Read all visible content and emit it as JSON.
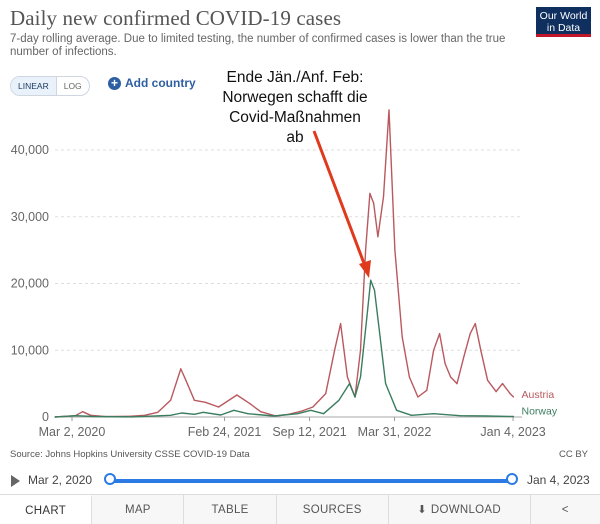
{
  "header": {
    "title": "Daily new confirmed COVID-19 cases",
    "subtitle": "7-day rolling average. Due to limited testing, the number of confirmed cases is lower than the true number of infections.",
    "logo_line1": "Our World",
    "logo_line2": "in Data"
  },
  "controls": {
    "scale_linear": "LINEAR",
    "scale_log": "LOG",
    "add_country": "Add country"
  },
  "annotation": {
    "line1": "Ende Jän./Anf. Feb:",
    "line2": "Norwegen schafft die",
    "line3": "Covid-Maßnahmen ab",
    "arrow_color": "#e03a1e"
  },
  "chart_data": {
    "type": "line",
    "title": "Daily new confirmed COVID-19 cases",
    "ylim": [
      0,
      46000
    ],
    "yticks": [
      0,
      10000,
      20000,
      30000,
      40000
    ],
    "ytick_labels": [
      "0",
      "10,000",
      "20,000",
      "30,000",
      "40,000"
    ],
    "xlim": [
      "2020-01-22",
      "2023-01-25"
    ],
    "xticks": [
      "2020-03-02",
      "2021-02-24",
      "2021-09-12",
      "2022-03-31",
      "2023-01-04"
    ],
    "xtick_labels": [
      "Mar 2, 2020",
      "Feb 24, 2021",
      "Sep 12, 2021",
      "Mar 31, 2022",
      "Jan 4, 2023"
    ],
    "grid": "horizontal dashed",
    "series": [
      {
        "name": "Austria",
        "color": "#b9595f",
        "points": [
          [
            "2020-01-22",
            0
          ],
          [
            "2020-03-10",
            200
          ],
          [
            "2020-03-27",
            800
          ],
          [
            "2020-04-15",
            250
          ],
          [
            "2020-05-20",
            60
          ],
          [
            "2020-07-15",
            100
          ],
          [
            "2020-08-20",
            250
          ],
          [
            "2020-09-20",
            700
          ],
          [
            "2020-10-20",
            2500
          ],
          [
            "2020-11-13",
            7200
          ],
          [
            "2020-11-25",
            5500
          ],
          [
            "2020-12-15",
            2500
          ],
          [
            "2021-01-10",
            2200
          ],
          [
            "2021-02-10",
            1500
          ],
          [
            "2021-03-25",
            3300
          ],
          [
            "2021-04-25",
            2000
          ],
          [
            "2021-05-20",
            800
          ],
          [
            "2021-06-25",
            150
          ],
          [
            "2021-07-25",
            400
          ],
          [
            "2021-08-25",
            900
          ],
          [
            "2021-09-20",
            1500
          ],
          [
            "2021-10-20",
            3500
          ],
          [
            "2021-11-10",
            10000
          ],
          [
            "2021-11-24",
            14000
          ],
          [
            "2021-12-10",
            6000
          ],
          [
            "2021-12-28",
            3000
          ],
          [
            "2022-01-10",
            10000
          ],
          [
            "2022-01-22",
            25000
          ],
          [
            "2022-02-01",
            33500
          ],
          [
            "2022-02-10",
            32000
          ],
          [
            "2022-02-20",
            27000
          ],
          [
            "2022-03-05",
            33000
          ],
          [
            "2022-03-18",
            46000
          ],
          [
            "2022-04-01",
            25000
          ],
          [
            "2022-04-18",
            12000
          ],
          [
            "2022-05-05",
            6000
          ],
          [
            "2022-05-25",
            3000
          ],
          [
            "2022-06-15",
            4000
          ],
          [
            "2022-07-01",
            10000
          ],
          [
            "2022-07-15",
            12500
          ],
          [
            "2022-07-28",
            8000
          ],
          [
            "2022-08-10",
            6000
          ],
          [
            "2022-08-25",
            5000
          ],
          [
            "2022-09-10",
            9000
          ],
          [
            "2022-09-25",
            12500
          ],
          [
            "2022-10-07",
            14000
          ],
          [
            "2022-10-20",
            10000
          ],
          [
            "2022-11-05",
            5500
          ],
          [
            "2022-11-25",
            3800
          ],
          [
            "2022-12-10",
            5000
          ],
          [
            "2022-12-28",
            3500
          ],
          [
            "2023-01-05",
            3000
          ]
        ]
      },
      {
        "name": "Norway",
        "color": "#3a7d5f",
        "points": [
          [
            "2020-01-22",
            0
          ],
          [
            "2020-03-12",
            200
          ],
          [
            "2020-04-20",
            80
          ],
          [
            "2020-07-20",
            20
          ],
          [
            "2020-10-20",
            250
          ],
          [
            "2020-11-15",
            600
          ],
          [
            "2020-12-15",
            400
          ],
          [
            "2021-01-05",
            700
          ],
          [
            "2021-02-15",
            300
          ],
          [
            "2021-03-18",
            1000
          ],
          [
            "2021-04-20",
            500
          ],
          [
            "2021-06-20",
            150
          ],
          [
            "2021-08-15",
            500
          ],
          [
            "2021-09-15",
            1000
          ],
          [
            "2021-10-15",
            500
          ],
          [
            "2021-11-20",
            2500
          ],
          [
            "2021-12-15",
            5000
          ],
          [
            "2021-12-28",
            3000
          ],
          [
            "2022-01-10",
            6000
          ],
          [
            "2022-01-25",
            15000
          ],
          [
            "2022-02-03",
            20500
          ],
          [
            "2022-02-12",
            19000
          ],
          [
            "2022-02-25",
            12000
          ],
          [
            "2022-03-10",
            5000
          ],
          [
            "2022-04-05",
            1000
          ],
          [
            "2022-05-10",
            250
          ],
          [
            "2022-07-01",
            500
          ],
          [
            "2022-09-01",
            200
          ],
          [
            "2022-11-01",
            150
          ],
          [
            "2023-01-05",
            80
          ]
        ]
      }
    ]
  },
  "footer": {
    "source": "Source: Johns Hopkins University CSSE COVID-19 Data",
    "license": "CC BY"
  },
  "timeline": {
    "start_label": "Mar 2, 2020",
    "end_label": "Jan 4, 2023"
  },
  "tabs": [
    {
      "label": "CHART"
    },
    {
      "label": "MAP"
    },
    {
      "label": "TABLE"
    },
    {
      "label": "SOURCES"
    },
    {
      "label": "DOWNLOAD"
    }
  ]
}
